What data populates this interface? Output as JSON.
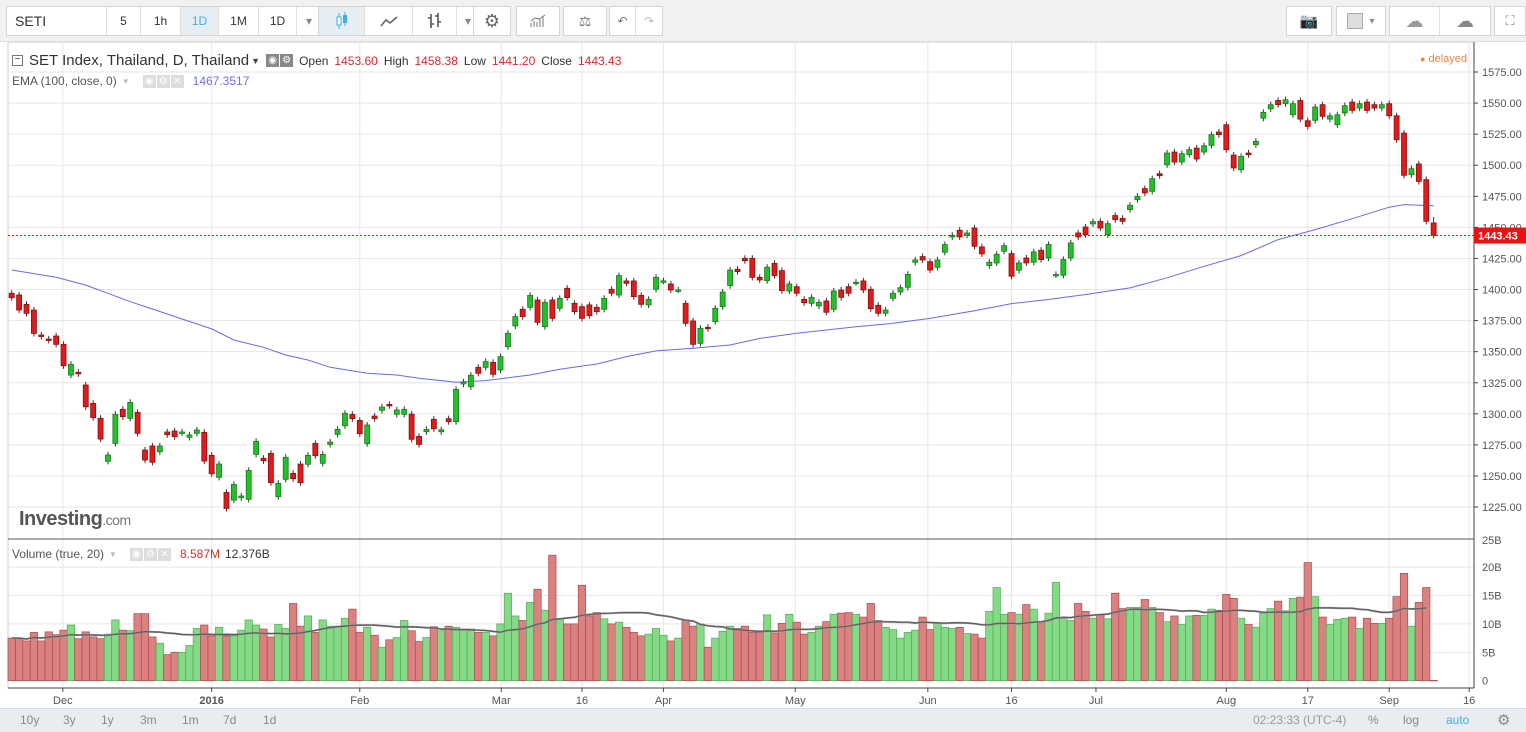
{
  "toolbar": {
    "symbol": "SETI",
    "intervals": [
      "5",
      "1h",
      "1D",
      "1M",
      "1D"
    ],
    "active_interval": "1D",
    "icons": [
      "candles-icon",
      "line-chart-icon",
      "bars-icon",
      "settings-gear-icon",
      "indicators-icon",
      "compare-scale-icon",
      "undo-icon",
      "redo-icon",
      "camera-icon",
      "color-box-icon",
      "cloud-download-icon",
      "cloud-upload-icon",
      "fullscreen-icon"
    ]
  },
  "legend": {
    "title": "SET Index, Thailand, D, Thailand",
    "open_label": "Open",
    "open": "1453.60",
    "high_label": "High",
    "high": "1458.38",
    "low_label": "Low",
    "low": "1441.20",
    "close_label": "Close",
    "close": "1443.43"
  },
  "ema": {
    "label": "EMA (100, close, 0)",
    "value": "1467.3517"
  },
  "volume_legend": {
    "label": "Volume (true, 20)",
    "value1": "8.587M",
    "value2": "12.376B"
  },
  "status": {
    "delayed": "delayed",
    "last_price": "1443.43"
  },
  "logo": {
    "brand": "Investing",
    "suffix": ".com"
  },
  "bottom": {
    "ranges": [
      "10y",
      "3y",
      "1y",
      "3m",
      "1m",
      "7d",
      "1d"
    ],
    "time": "02:23:33 (UTC-4)",
    "percent": "%",
    "log": "log",
    "auto": "auto"
  },
  "colors": {
    "up": "#22c02a",
    "down": "#e01b1b",
    "vol_up": "#86d986",
    "vol_down": "#da8282",
    "ema": "#6a6ae8",
    "last": "#ee1111"
  },
  "chart_data": {
    "type": "candlestick",
    "title": "SET Index, Thailand, D",
    "price_ticks": [
      "1575.00",
      "1550.00",
      "1525.00",
      "1500.00",
      "1475.00",
      "1450.00",
      "1425.00",
      "1400.00",
      "1375.00",
      "1350.00",
      "1325.00",
      "1300.00",
      "1275.00",
      "1250.00",
      "1225.00"
    ],
    "ylim": [
      1212,
      1599
    ],
    "volume_ticks": [
      "25B",
      "20B",
      "15B",
      "10B",
      "5B",
      "0"
    ],
    "volume_ylim_B": [
      0,
      25
    ],
    "x_ticks": [
      {
        "label": "Dec",
        "bar": 7.9
      },
      {
        "label": "2016",
        "bar": 28,
        "bold": true
      },
      {
        "label": "Feb",
        "bar": 48
      },
      {
        "label": "Mar",
        "bar": 67.1
      },
      {
        "label": "16",
        "bar": 78
      },
      {
        "label": "Apr",
        "bar": 89
      },
      {
        "label": "May",
        "bar": 106.8
      },
      {
        "label": "Jun",
        "bar": 124.7
      },
      {
        "label": "16",
        "bar": 136
      },
      {
        "label": "Jul",
        "bar": 147.4
      },
      {
        "label": "Aug",
        "bar": 165
      },
      {
        "label": "17",
        "bar": 176
      },
      {
        "label": "Sep",
        "bar": 187
      },
      {
        "label": "16",
        "bar": 197.8
      }
    ],
    "candles_open_close": [
      [
        1397.0,
        1393.4
      ],
      [
        1395.6,
        1383.5
      ],
      [
        1388.1,
        1380.8
      ],
      [
        1383.5,
        1364.7
      ],
      [
        1363.4,
        1362.3
      ],
      [
        1360.2,
        1359.1
      ],
      [
        1362.6,
        1355.9
      ],
      [
        1355.9,
        1338.7
      ],
      [
        1331.2,
        1339.8
      ],
      [
        1333.4,
        1332.3
      ],
      [
        1323.2,
        1305.7
      ],
      [
        1308.4,
        1296.9
      ],
      [
        1296.4,
        1279.7
      ],
      [
        1261.8,
        1266.9
      ],
      [
        1276.2,
        1299.6
      ],
      [
        1303.6,
        1297.7
      ],
      [
        1296.4,
        1309.2
      ],
      [
        1301.2,
        1284.3
      ],
      [
        1270.9,
        1262.8
      ],
      [
        1274.1,
        1261.0
      ],
      [
        1269.5,
        1274.1
      ],
      [
        1285.4,
        1283.2
      ],
      [
        1286.2,
        1281.6
      ],
      [
        1284.6,
        1285.4
      ],
      [
        1281.1,
        1283.0
      ],
      [
        1284.3,
        1287.0
      ],
      [
        1285.1,
        1262.0
      ],
      [
        1266.6,
        1251.8
      ],
      [
        1248.9,
        1259.6
      ],
      [
        1236.8,
        1223.9
      ],
      [
        1230.6,
        1243.2
      ],
      [
        1232.5,
        1233.9
      ],
      [
        1231.2,
        1254.5
      ],
      [
        1267.4,
        1277.9
      ],
      [
        1264.2,
        1262.3
      ],
      [
        1268.2,
        1244.6
      ],
      [
        1233.3,
        1244.1
      ],
      [
        1247.3,
        1265.0
      ],
      [
        1252.1,
        1247.8
      ],
      [
        1259.6,
        1244.6
      ],
      [
        1259.4,
        1266.6
      ],
      [
        1276.2,
        1266.3
      ],
      [
        1260.2,
        1267.4
      ],
      [
        1275.4,
        1277.3
      ],
      [
        1283.5,
        1287.5
      ],
      [
        1290.4,
        1300.4
      ],
      [
        1299.6,
        1296.1
      ],
      [
        1294.7,
        1284.0
      ],
      [
        1276.0,
        1291.0
      ],
      [
        1298.2,
        1296.1
      ],
      [
        1302.8,
        1305.5
      ],
      [
        1307.6,
        1306.6
      ],
      [
        1299.6,
        1303.1
      ],
      [
        1299.6,
        1303.6
      ],
      [
        1299.8,
        1279.5
      ],
      [
        1281.9,
        1275.4
      ],
      [
        1285.6,
        1287.5
      ],
      [
        1295.6,
        1288.0
      ],
      [
        1285.6,
        1287.2
      ],
      [
        1296.1,
        1293.7
      ],
      [
        1293.7,
        1319.7
      ],
      [
        1324.0,
        1325.6
      ],
      [
        1321.8,
        1331.0
      ],
      [
        1337.4,
        1332.6
      ],
      [
        1337.4,
        1342.0
      ],
      [
        1341.4,
        1331.8
      ],
      [
        1335.3,
        1346.0
      ],
      [
        1354.0,
        1364.8
      ],
      [
        1370.7,
        1378.2
      ],
      [
        1384.1,
        1378.2
      ],
      [
        1385.7,
        1395.3
      ],
      [
        1391.6,
        1373.6
      ],
      [
        1370.1,
        1389.7
      ],
      [
        1391.6,
        1376.8
      ],
      [
        1384.9,
        1392.9
      ],
      [
        1401.0,
        1393.5
      ],
      [
        1388.9,
        1382.2
      ],
      [
        1386.2,
        1376.8
      ],
      [
        1387.6,
        1379.0
      ],
      [
        1385.7,
        1382.2
      ],
      [
        1384.1,
        1392.9
      ],
      [
        1400.2,
        1397.0
      ],
      [
        1395.6,
        1411.2
      ],
      [
        1406.9,
        1405.0
      ],
      [
        1406.9,
        1394.3
      ],
      [
        1395.3,
        1388.1
      ],
      [
        1387.6,
        1392.1
      ],
      [
        1400.2,
        1409.8
      ],
      [
        1406.9,
        1407.0
      ],
      [
        1404.5,
        1399.6
      ],
      [
        1399.6,
        1399.7
      ],
      [
        1388.9,
        1372.8
      ],
      [
        1374.7,
        1355.9
      ],
      [
        1356.7,
        1368.8
      ],
      [
        1369.6,
        1368.5
      ],
      [
        1374.2,
        1384.9
      ],
      [
        1386.2,
        1398.0
      ],
      [
        1403.1,
        1415.7
      ],
      [
        1416.3,
        1414.4
      ],
      [
        1425.1,
        1423.2
      ],
      [
        1425.1,
        1409.8
      ],
      [
        1409.8,
        1407.7
      ],
      [
        1407.1,
        1417.9
      ],
      [
        1421.1,
        1411.2
      ],
      [
        1415.2,
        1399.1
      ],
      [
        1398.8,
        1404.5
      ],
      [
        1402.3,
        1397.0
      ],
      [
        1392.1,
        1389.4
      ],
      [
        1388.9,
        1393.7
      ],
      [
        1386.8,
        1389.7
      ],
      [
        1390.8,
        1381.7
      ],
      [
        1384.1,
        1398.8
      ],
      [
        1399.6,
        1393.7
      ],
      [
        1402.3,
        1397.0
      ],
      [
        1405.7,
        1405.9
      ],
      [
        1406.9,
        1399.6
      ],
      [
        1400.2,
        1384.6
      ],
      [
        1387.3,
        1380.9
      ],
      [
        1380.9,
        1383.5
      ],
      [
        1392.9,
        1397.0
      ],
      [
        1398.0,
        1401.5
      ],
      [
        1401.8,
        1412.2
      ],
      [
        1421.9,
        1423.8
      ],
      [
        1426.5,
        1423.8
      ],
      [
        1422.4,
        1415.7
      ],
      [
        1417.9,
        1423.8
      ],
      [
        1430.0,
        1436.2
      ],
      [
        1442.3,
        1443.6
      ],
      [
        1447.7,
        1442.3
      ],
      [
        1443.7,
        1445.5
      ],
      [
        1449.5,
        1434.8
      ],
      [
        1434.3,
        1428.7
      ],
      [
        1419.3,
        1422.0
      ],
      [
        1421.4,
        1428.4
      ],
      [
        1430.8,
        1435.3
      ],
      [
        1428.9,
        1410.7
      ],
      [
        1415.5,
        1421.4
      ],
      [
        1425.4,
        1421.4
      ],
      [
        1422.0,
        1430.3
      ],
      [
        1431.6,
        1424.1
      ],
      [
        1425.4,
        1436.2
      ],
      [
        1411.9,
        1412.1
      ],
      [
        1411.5,
        1424.1
      ],
      [
        1425.4,
        1437.5
      ],
      [
        1445.5,
        1442.3
      ],
      [
        1450.3,
        1444.2
      ],
      [
        1452.8,
        1454.6
      ],
      [
        1454.9,
        1449.5
      ],
      [
        1444.2,
        1453.0
      ],
      [
        1459.5,
        1456.2
      ],
      [
        1457.3,
        1454.9
      ],
      [
        1464.3,
        1467.8
      ],
      [
        1472.3,
        1475.0
      ],
      [
        1481.2,
        1477.7
      ],
      [
        1479.0,
        1489.2
      ],
      [
        1493.2,
        1491.6
      ],
      [
        1500.4,
        1509.8
      ],
      [
        1510.6,
        1502.6
      ],
      [
        1502.6,
        1509.3
      ],
      [
        1508.5,
        1512.5
      ],
      [
        1513.8,
        1505.0
      ],
      [
        1510.6,
        1515.7
      ],
      [
        1516.0,
        1524.6
      ],
      [
        1526.7,
        1524.6
      ],
      [
        1532.6,
        1512.5
      ],
      [
        1508.2,
        1497.8
      ],
      [
        1496.4,
        1507.1
      ],
      [
        1509.8,
        1508.5
      ],
      [
        1516.5,
        1519.2
      ],
      [
        1537.9,
        1542.5
      ],
      [
        1545.4,
        1548.7
      ],
      [
        1552.1,
        1548.7
      ],
      [
        1549.5,
        1552.7
      ],
      [
        1540.6,
        1549.5
      ],
      [
        1552.1,
        1537.1
      ],
      [
        1535.8,
        1531.2
      ],
      [
        1536.1,
        1546.8
      ],
      [
        1548.7,
        1539.3
      ],
      [
        1537.1,
        1539.8
      ],
      [
        1532.6,
        1540.6
      ],
      [
        1542.0,
        1547.9
      ],
      [
        1550.8,
        1544.1
      ],
      [
        1546.0,
        1549.5
      ],
      [
        1550.8,
        1544.1
      ],
      [
        1548.7,
        1546.0
      ],
      [
        1546.0,
        1548.7
      ],
      [
        1549.5,
        1539.8
      ],
      [
        1539.8,
        1520.5
      ],
      [
        1525.9,
        1491.9
      ],
      [
        1492.4,
        1497.2
      ],
      [
        1501.0,
        1487.0
      ],
      [
        1488.4,
        1454.9
      ],
      [
        1453.6,
        1443.43
      ]
    ],
    "wick_extension": 2.5,
    "volume_B": [
      7.5,
      7.5,
      7.0,
      8.5,
      7.0,
      8.6,
      8.1,
      8.9,
      9.8,
      7.4,
      8.6,
      7.7,
      7.4,
      8.2,
      10.7,
      8.9,
      8.8,
      11.8,
      11.8,
      7.7,
      6.6,
      4.6,
      5.0,
      5.0,
      6.2,
      9.2,
      9.8,
      7.9,
      9.4,
      7.9,
      7.9,
      8.9,
      10.7,
      9.8,
      9.1,
      7.7,
      9.9,
      9.2,
      13.6,
      9.6,
      11.4,
      8.5,
      10.7,
      9.6,
      9.6,
      11.0,
      12.6,
      8.5,
      9.4,
      8.0,
      5.9,
      7.2,
      7.6,
      10.6,
      8.8,
      6.9,
      7.6,
      9.5,
      8.8,
      9.6,
      9.4,
      9.1,
      9.1,
      8.5,
      8.5,
      7.9,
      10.0,
      15.4,
      11.4,
      10.6,
      13.8,
      16.1,
      12.4,
      22.1,
      10.9,
      10.0,
      10.0,
      16.8,
      11.4,
      12.0,
      10.9,
      10.0,
      10.3,
      9.4,
      8.5,
      7.9,
      8.2,
      9.2,
      8.0,
      7.0,
      7.5,
      10.6,
      9.6,
      10.0,
      5.9,
      7.5,
      8.7,
      9.6,
      9.2,
      9.6,
      8.5,
      8.5,
      11.6,
      8.4,
      10.1,
      11.7,
      10.3,
      8.2,
      8.5,
      9.6,
      10.4,
      11.7,
      11.9,
      12.0,
      11.7,
      11.2,
      13.6,
      10.6,
      9.4,
      9.0,
      7.5,
      8.5,
      8.9,
      11.2,
      9.0,
      10.2,
      9.4,
      9.2,
      9.4,
      8.3,
      8.2,
      7.5,
      12.2,
      16.4,
      11.7,
      12.0,
      11.7,
      13.4,
      12.6,
      10.3,
      11.9,
      17.3,
      11.0,
      10.6,
      13.6,
      12.2,
      11.0,
      11.6,
      10.9,
      15.4,
      12.7,
      12.9,
      12.9,
      14.3,
      12.9,
      12.0,
      10.4,
      11.4,
      9.9,
      11.4,
      11.5,
      11.5,
      12.6,
      12.4,
      15.2,
      14.5,
      11.0,
      9.9,
      9.4,
      11.9,
      12.7,
      14.0,
      12.3,
      14.5,
      14.7,
      20.8,
      14.8,
      11.2,
      9.9,
      10.8,
      11.0,
      11.2,
      9.2,
      11.0,
      10.1,
      10.1,
      11.0,
      14.8,
      18.9,
      9.6,
      13.8,
      16.4,
      0.05
    ],
    "volume_ma_period": 20,
    "ema_points": [
      [
        1,
        1415.7
      ],
      [
        7,
        1409.8
      ],
      [
        11,
        1403.6
      ],
      [
        14,
        1397.0
      ],
      [
        17,
        1390.2
      ],
      [
        20,
        1384.3
      ],
      [
        24,
        1376.3
      ],
      [
        28,
        1368.3
      ],
      [
        31,
        1359.4
      ],
      [
        35,
        1353.5
      ],
      [
        38,
        1347.3
      ],
      [
        41,
        1343.3
      ],
      [
        44,
        1337.4
      ],
      [
        49,
        1332.6
      ],
      [
        53,
        1331.2
      ],
      [
        56,
        1328.6
      ],
      [
        61,
        1325.4
      ],
      [
        65,
        1326.7
      ],
      [
        71,
        1331.2
      ],
      [
        75,
        1335.8
      ],
      [
        80,
        1340.1
      ],
      [
        84,
        1346.0
      ],
      [
        88,
        1350.6
      ],
      [
        93,
        1352.7
      ],
      [
        98,
        1355.4
      ],
      [
        102,
        1360.7
      ],
      [
        107,
        1364.8
      ],
      [
        111,
        1367.4
      ],
      [
        115,
        1370.1
      ],
      [
        120,
        1372.8
      ],
      [
        125,
        1376.8
      ],
      [
        129,
        1380.9
      ],
      [
        131,
        1383.0
      ],
      [
        136,
        1388.7
      ],
      [
        141,
        1392.0
      ],
      [
        146,
        1396.0
      ],
      [
        152,
        1401.3
      ],
      [
        157,
        1409.4
      ],
      [
        162,
        1418.7
      ],
      [
        167,
        1427.3
      ],
      [
        172,
        1440.2
      ],
      [
        177,
        1448.2
      ],
      [
        182,
        1457.0
      ],
      [
        187,
        1466.2
      ],
      [
        189,
        1468.3
      ],
      [
        193,
        1467.35
      ]
    ]
  }
}
